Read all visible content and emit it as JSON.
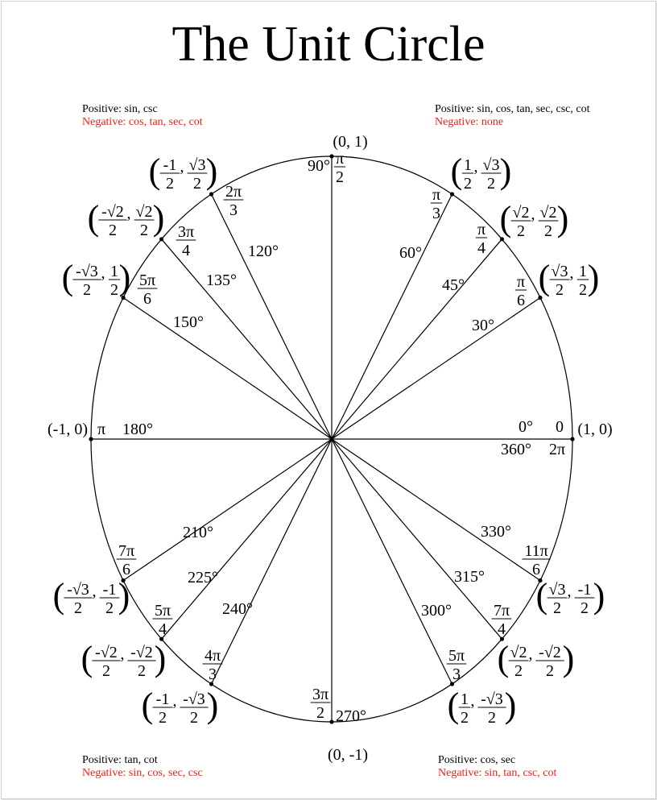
{
  "title": "The Unit Circle",
  "colors": {
    "negative": "#e0251b",
    "line": "#000000"
  },
  "quadrants": {
    "q1": {
      "positive": "Positive: sin, cos, tan, sec, csc, cot",
      "negative": "Negative: none"
    },
    "q2": {
      "positive": "Positive: sin, csc",
      "negative": "Negative: cos, tan, sec, cot"
    },
    "q3": {
      "positive": "Positive: tan, cot",
      "negative": "Negative: sin, cos, sec, csc"
    },
    "q4": {
      "positive": "Positive: cos, sec",
      "negative": "Negative: sin, tan, csc, cot"
    }
  },
  "angles": [
    {
      "deg": 0,
      "degree_label": "0°",
      "degree_label_2": "360°",
      "radian": {
        "whole": "0"
      },
      "radian_2": {
        "whole": "2π"
      },
      "coord": {
        "x": "1",
        "y": "0"
      }
    },
    {
      "deg": 30,
      "degree_label": "30°",
      "radian": {
        "num": "π",
        "den": "6"
      },
      "coord": {
        "x_num": "√3",
        "x_den": "2",
        "y_num": "1",
        "y_den": "2"
      }
    },
    {
      "deg": 45,
      "degree_label": "45°",
      "radian": {
        "num": "π",
        "den": "4"
      },
      "coord": {
        "x_num": "√2",
        "x_den": "2",
        "y_num": "√2",
        "y_den": "2"
      }
    },
    {
      "deg": 60,
      "degree_label": "60°",
      "radian": {
        "num": "π",
        "den": "3"
      },
      "coord": {
        "x_num": "1",
        "x_den": "2",
        "y_num": "√3",
        "y_den": "2"
      }
    },
    {
      "deg": 90,
      "degree_label": "90°",
      "radian": {
        "num": "π",
        "den": "2"
      },
      "coord": {
        "x": "0",
        "y": "1"
      }
    },
    {
      "deg": 120,
      "degree_label": "120°",
      "radian": {
        "num": "2π",
        "den": "3"
      },
      "coord": {
        "x_num": "-1",
        "x_den": "2",
        "y_num": "√3",
        "y_den": "2"
      }
    },
    {
      "deg": 135,
      "degree_label": "135°",
      "radian": {
        "num": "3π",
        "den": "4"
      },
      "coord": {
        "x_num": "-√2",
        "x_den": "2",
        "y_num": "√2",
        "y_den": "2"
      }
    },
    {
      "deg": 150,
      "degree_label": "150°",
      "radian": {
        "num": "5π",
        "den": "6"
      },
      "coord": {
        "x_num": "-√3",
        "x_den": "2",
        "y_num": "1",
        "y_den": "2"
      }
    },
    {
      "deg": 180,
      "degree_label": "180°",
      "radian": {
        "whole": "π"
      },
      "coord": {
        "x": "-1",
        "y": "0"
      }
    },
    {
      "deg": 210,
      "degree_label": "210°",
      "radian": {
        "num": "7π",
        "den": "6"
      },
      "coord": {
        "x_num": "-√3",
        "x_den": "2",
        "y_num": "-1",
        "y_den": "2"
      }
    },
    {
      "deg": 225,
      "degree_label": "225°",
      "radian": {
        "num": "5π",
        "den": "4"
      },
      "coord": {
        "x_num": "-√2",
        "x_den": "2",
        "y_num": "-√2",
        "y_den": "2"
      }
    },
    {
      "deg": 240,
      "degree_label": "240°",
      "radian": {
        "num": "4π",
        "den": "3"
      },
      "coord": {
        "x_num": "-1",
        "x_den": "2",
        "y_num": "-√3",
        "y_den": "2"
      }
    },
    {
      "deg": 270,
      "degree_label": "270°",
      "radian": {
        "num": "3π",
        "den": "2"
      },
      "coord": {
        "x": "0",
        "y": "-1"
      }
    },
    {
      "deg": 300,
      "degree_label": "300°",
      "radian": {
        "num": "5π",
        "den": "3"
      },
      "coord": {
        "x_num": "1",
        "x_den": "2",
        "y_num": "-√3",
        "y_den": "2"
      }
    },
    {
      "deg": 315,
      "degree_label": "315°",
      "radian": {
        "num": "7π",
        "den": "4"
      },
      "coord": {
        "x_num": "√2",
        "x_den": "2",
        "y_num": "-√2",
        "y_den": "2"
      }
    },
    {
      "deg": 330,
      "degree_label": "330°",
      "radian": {
        "num": "11π",
        "den": "6"
      },
      "coord": {
        "x_num": "√3",
        "x_den": "2",
        "y_num": "-1",
        "y_den": "2"
      }
    }
  ]
}
